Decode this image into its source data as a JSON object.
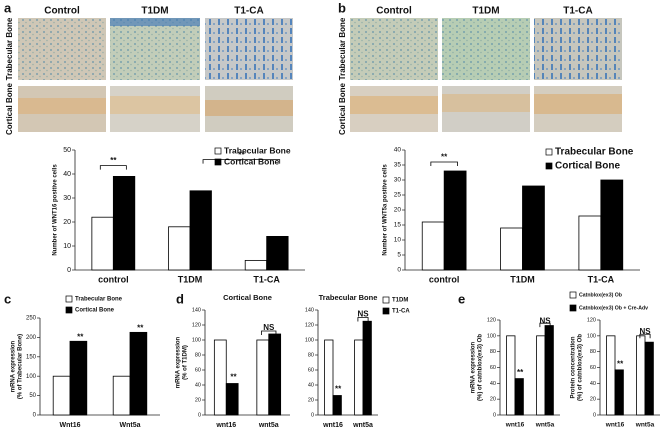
{
  "panels": [
    {
      "label": "a",
      "columns": [
        "Control",
        "T1DM",
        "T1-CA"
      ],
      "rows": [
        "Trabecular Bone",
        "Cortical Bone"
      ]
    },
    {
      "label": "b",
      "columns": [
        "Control",
        "T1DM",
        "T1-CA"
      ],
      "rows": [
        "Trabecular Bone",
        "Cortical Bone"
      ]
    },
    {
      "label": "c"
    },
    {
      "label": "d"
    },
    {
      "label": "e"
    }
  ],
  "chart_data": [
    {
      "type": "bar",
      "y_label": [
        "Number of WNT16 positive cells"
      ],
      "categories": [
        "control",
        "T1DM",
        "T1-CA"
      ],
      "series": [
        {
          "name": "Trabecular Bone",
          "color": "#ffffff",
          "values": [
            22,
            18,
            4
          ]
        },
        {
          "name": "Cortical Bone",
          "color": "#000000",
          "values": [
            39,
            33,
            14
          ]
        }
      ],
      "ylim": [
        0,
        50
      ],
      "yticks": [
        0,
        10,
        20,
        30,
        40,
        50
      ],
      "annotations": [
        "**",
        "**"
      ]
    },
    {
      "type": "bar",
      "y_label": [
        "Number of WNT5a positive cells"
      ],
      "categories": [
        "control",
        "T1DM",
        "T1-CA"
      ],
      "series": [
        {
          "name": "Trabecular Bone",
          "color": "#ffffff",
          "values": [
            16,
            14,
            18
          ]
        },
        {
          "name": "Cortical Bone",
          "color": "#000000",
          "values": [
            33,
            28,
            30
          ]
        }
      ],
      "ylim": [
        0,
        40
      ],
      "yticks": [
        0,
        5,
        10,
        15,
        20,
        25,
        30,
        35,
        40
      ],
      "annotations": [
        "**"
      ]
    },
    {
      "type": "bar",
      "y_label": [
        "mRNA expression",
        "(% of Trabecular Bone)"
      ],
      "categories": [
        "Wnt16",
        "Wnt5a"
      ],
      "series": [
        {
          "name": "Trabecular Bone",
          "color": "#ffffff",
          "values": [
            100,
            100
          ]
        },
        {
          "name": "Cortical Bone",
          "color": "#000000",
          "values": [
            190,
            213
          ]
        }
      ],
      "ylim": [
        0,
        250
      ],
      "yticks": [
        0,
        50,
        100,
        150,
        200,
        250
      ],
      "annotations": [
        "**",
        "**"
      ]
    },
    {
      "type": "bar",
      "subtitle": "Cortical Bone",
      "y_label": [
        "mRNA expression",
        "(% of T1DM)"
      ],
      "categories": [
        "wnt16",
        "wnt5a"
      ],
      "series": [
        {
          "color": "#ffffff",
          "values": [
            100,
            100
          ]
        },
        {
          "color": "#000000",
          "values": [
            42,
            108
          ]
        }
      ],
      "ylim": [
        0,
        140
      ],
      "yticks": [
        0,
        20,
        40,
        60,
        80,
        100,
        120,
        140
      ],
      "annotations": [
        "**",
        "NS"
      ]
    },
    {
      "type": "bar",
      "subtitle": "Trabecular Bone",
      "categories": [
        "wnt16",
        "wnt5a"
      ],
      "series": [
        {
          "name": "T1DM",
          "color": "#ffffff",
          "values": [
            100,
            100
          ]
        },
        {
          "name": "T1-CA",
          "color": "#000000",
          "values": [
            26,
            125
          ]
        }
      ],
      "ylim": [
        0,
        140
      ],
      "yticks": [
        0,
        20,
        40,
        60,
        80,
        100,
        120,
        140
      ],
      "annotations": [
        "**",
        "NS"
      ]
    },
    {
      "type": "bar",
      "y_label": [
        "mRNA expression",
        "(%) of catnblox(ex3) Ob"
      ],
      "categories": [
        "wnt16",
        "wnt5a"
      ],
      "series": [
        {
          "name": "Catnblox(ex3) Ob",
          "color": "#ffffff",
          "values": [
            100,
            100
          ]
        },
        {
          "name": "Catnblox(ex3) Ob + Cre-Adv",
          "color": "#000000",
          "values": [
            46,
            113
          ]
        }
      ],
      "ylim": [
        0,
        120
      ],
      "yticks": [
        0,
        20,
        40,
        60,
        80,
        100,
        120
      ],
      "annotations": [
        "**",
        "NS"
      ]
    },
    {
      "type": "bar",
      "y_label": [
        "Protein concentration",
        "(%) of catnblox(ex3) Ob"
      ],
      "categories": [
        "wnt16",
        "wnt5a"
      ],
      "series": [
        {
          "color": "#ffffff",
          "values": [
            100,
            100
          ]
        },
        {
          "color": "#000000",
          "values": [
            57,
            92
          ]
        }
      ],
      "ylim": [
        0,
        120
      ],
      "yticks": [
        0,
        20,
        40,
        60,
        80,
        100,
        120
      ],
      "annotations": [
        "**",
        "NS"
      ]
    }
  ]
}
